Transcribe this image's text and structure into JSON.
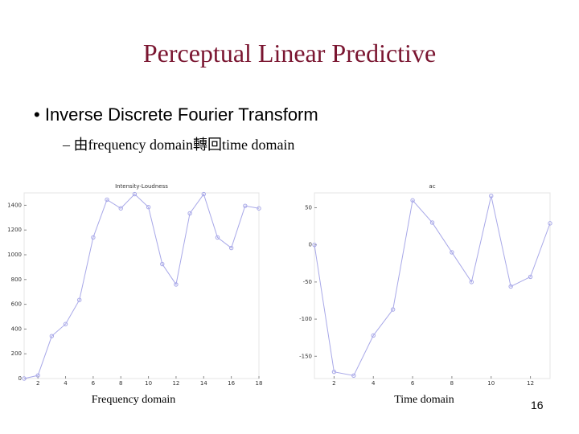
{
  "title": "Perceptual Linear Predictive",
  "bullets": [
    {
      "text": "Inverse Discrete Fourier Transform",
      "sub": [
        "由frequency domain轉回time domain"
      ]
    }
  ],
  "page_number": "16",
  "chart_data": [
    {
      "type": "line",
      "title": "Intensity-Loudness",
      "xlabel": "Frequency domain",
      "x": [
        1,
        2,
        3,
        4,
        5,
        6,
        7,
        8,
        9,
        10,
        11,
        12,
        13,
        14,
        15,
        16,
        17,
        18
      ],
      "series": [
        {
          "name": "Intensity-Loudness",
          "color": "#a8a8e8",
          "values": [
            0,
            25,
            343,
            440,
            635,
            1140,
            1445,
            1375,
            1490,
            1385,
            925,
            760,
            1335,
            1490,
            1140,
            1055,
            1395,
            1375
          ]
        }
      ],
      "xlim": [
        1,
        18
      ],
      "xticks": [
        2,
        4,
        6,
        8,
        10,
        12,
        14,
        16,
        18
      ],
      "ylim": [
        0,
        1500
      ],
      "yticks": [
        0,
        200,
        400,
        600,
        800,
        1000,
        1200,
        1400
      ],
      "grid": false,
      "markers": true
    },
    {
      "type": "line",
      "title": "ac",
      "xlabel": "Time domain",
      "x": [
        1,
        2,
        3,
        4,
        5,
        6,
        7,
        8,
        9,
        10,
        11,
        12,
        13
      ],
      "series": [
        {
          "name": "ac",
          "color": "#a8a8e8",
          "values": [
            0,
            -171,
            -176,
            -122,
            -87,
            60,
            30,
            -10,
            -50,
            66,
            -56,
            -43,
            29
          ]
        }
      ],
      "xlim": [
        1,
        13
      ],
      "xticks": [
        2,
        4,
        6,
        8,
        10,
        12
      ],
      "ylim": [
        -180,
        70
      ],
      "yticks": [
        50,
        0,
        -50,
        -100,
        -150
      ],
      "grid": false,
      "markers": true
    }
  ]
}
